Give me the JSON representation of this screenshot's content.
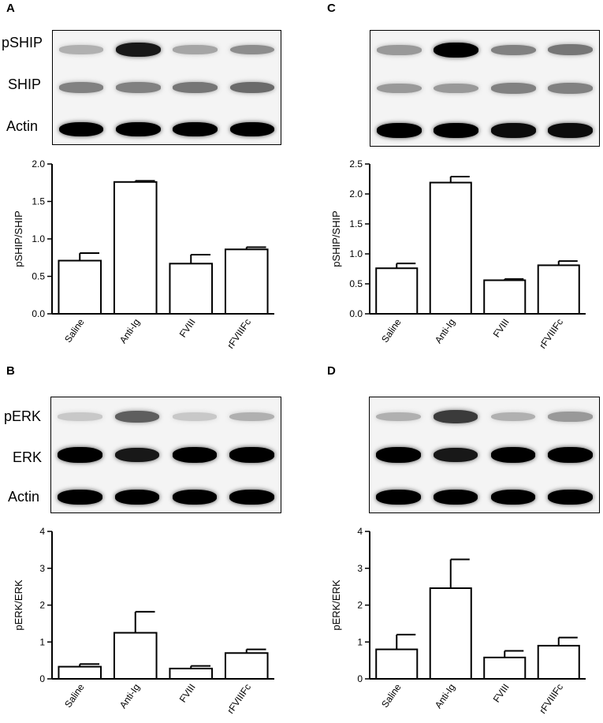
{
  "panels": [
    {
      "id": "A",
      "letter": "A",
      "blot_labels": [
        "pSHIP",
        "SHIP",
        "Actin"
      ],
      "bands": [
        {
          "row": 0,
          "intensity": [
            0.25,
            0.9,
            0.3,
            0.4
          ]
        },
        {
          "row": 1,
          "intensity": [
            0.45,
            0.45,
            0.5,
            0.55
          ]
        },
        {
          "row": 2,
          "intensity": [
            1.0,
            1.0,
            1.0,
            1.0
          ]
        }
      ]
    },
    {
      "id": "C",
      "letter": "C",
      "blot_labels": [],
      "bands": [
        {
          "row": 0,
          "intensity": [
            0.35,
            1.0,
            0.45,
            0.5
          ]
        },
        {
          "row": 1,
          "intensity": [
            0.35,
            0.35,
            0.45,
            0.45
          ]
        },
        {
          "row": 2,
          "intensity": [
            1.0,
            1.0,
            0.95,
            0.95
          ]
        }
      ]
    },
    {
      "id": "B",
      "letter": "B",
      "blot_labels": [
        "pERK",
        "ERK",
        "Actin"
      ],
      "bands": [
        {
          "row": 0,
          "intensity": [
            0.15,
            0.6,
            0.15,
            0.25
          ]
        },
        {
          "row": 1,
          "intensity": [
            1.0,
            0.9,
            1.0,
            1.0
          ]
        },
        {
          "row": 2,
          "intensity": [
            1.0,
            1.0,
            1.0,
            1.0
          ]
        }
      ]
    },
    {
      "id": "D",
      "letter": "D",
      "blot_labels": [],
      "bands": [
        {
          "row": 0,
          "intensity": [
            0.25,
            0.75,
            0.25,
            0.35
          ]
        },
        {
          "row": 1,
          "intensity": [
            1.0,
            0.9,
            1.0,
            1.0
          ]
        },
        {
          "row": 2,
          "intensity": [
            1.0,
            1.0,
            1.0,
            1.0
          ]
        }
      ]
    }
  ],
  "chart_data": [
    {
      "panel": "A",
      "type": "bar",
      "categories": [
        "Saline",
        "Anti-Ig",
        "FVIII",
        "rFVIIIFc"
      ],
      "values": [
        0.71,
        1.76,
        0.67,
        0.86
      ],
      "errors": [
        0.1,
        0.015,
        0.12,
        0.03
      ],
      "ylabel": "pSHIP/SHIP",
      "ylim": [
        0,
        2.0
      ],
      "yticks": [
        "0.0",
        "0.5",
        "1.0",
        "1.5",
        "2.0"
      ],
      "ytick_values": [
        0,
        0.5,
        1.0,
        1.5,
        2.0
      ]
    },
    {
      "panel": "C",
      "type": "bar",
      "categories": [
        "Saline",
        "Anti-Ig",
        "FVIII",
        "rFVIIIFc"
      ],
      "values": [
        0.76,
        2.19,
        0.56,
        0.81
      ],
      "errors": [
        0.08,
        0.1,
        0.02,
        0.07
      ],
      "ylabel": "pSHIP/SHIP",
      "ylim": [
        0,
        2.5
      ],
      "yticks": [
        "0.0",
        "0.5",
        "1.0",
        "1.5",
        "2.0",
        "2.5"
      ],
      "ytick_values": [
        0,
        0.5,
        1.0,
        1.5,
        2.0,
        2.5
      ]
    },
    {
      "panel": "B",
      "type": "bar",
      "categories": [
        "Saline",
        "Anti-Ig",
        "FVIII",
        "rFVIIIFc"
      ],
      "values": [
        0.33,
        1.25,
        0.28,
        0.7
      ],
      "errors": [
        0.07,
        0.57,
        0.07,
        0.1
      ],
      "ylabel": "pERK/ERK",
      "ylim": [
        0,
        4
      ],
      "yticks": [
        "0",
        "1",
        "2",
        "3",
        "4"
      ],
      "ytick_values": [
        0,
        1,
        2,
        3,
        4
      ]
    },
    {
      "panel": "D",
      "type": "bar",
      "categories": [
        "Saline",
        "Anti-Ig",
        "FVIII",
        "rFVIIIFc"
      ],
      "values": [
        0.8,
        2.46,
        0.58,
        0.9
      ],
      "errors": [
        0.4,
        0.78,
        0.18,
        0.22
      ],
      "ylabel": "pERK/ERK",
      "ylim": [
        0,
        4
      ],
      "yticks": [
        "0",
        "1",
        "2",
        "3",
        "4"
      ],
      "ytick_values": [
        0,
        1,
        2,
        3,
        4
      ]
    }
  ]
}
